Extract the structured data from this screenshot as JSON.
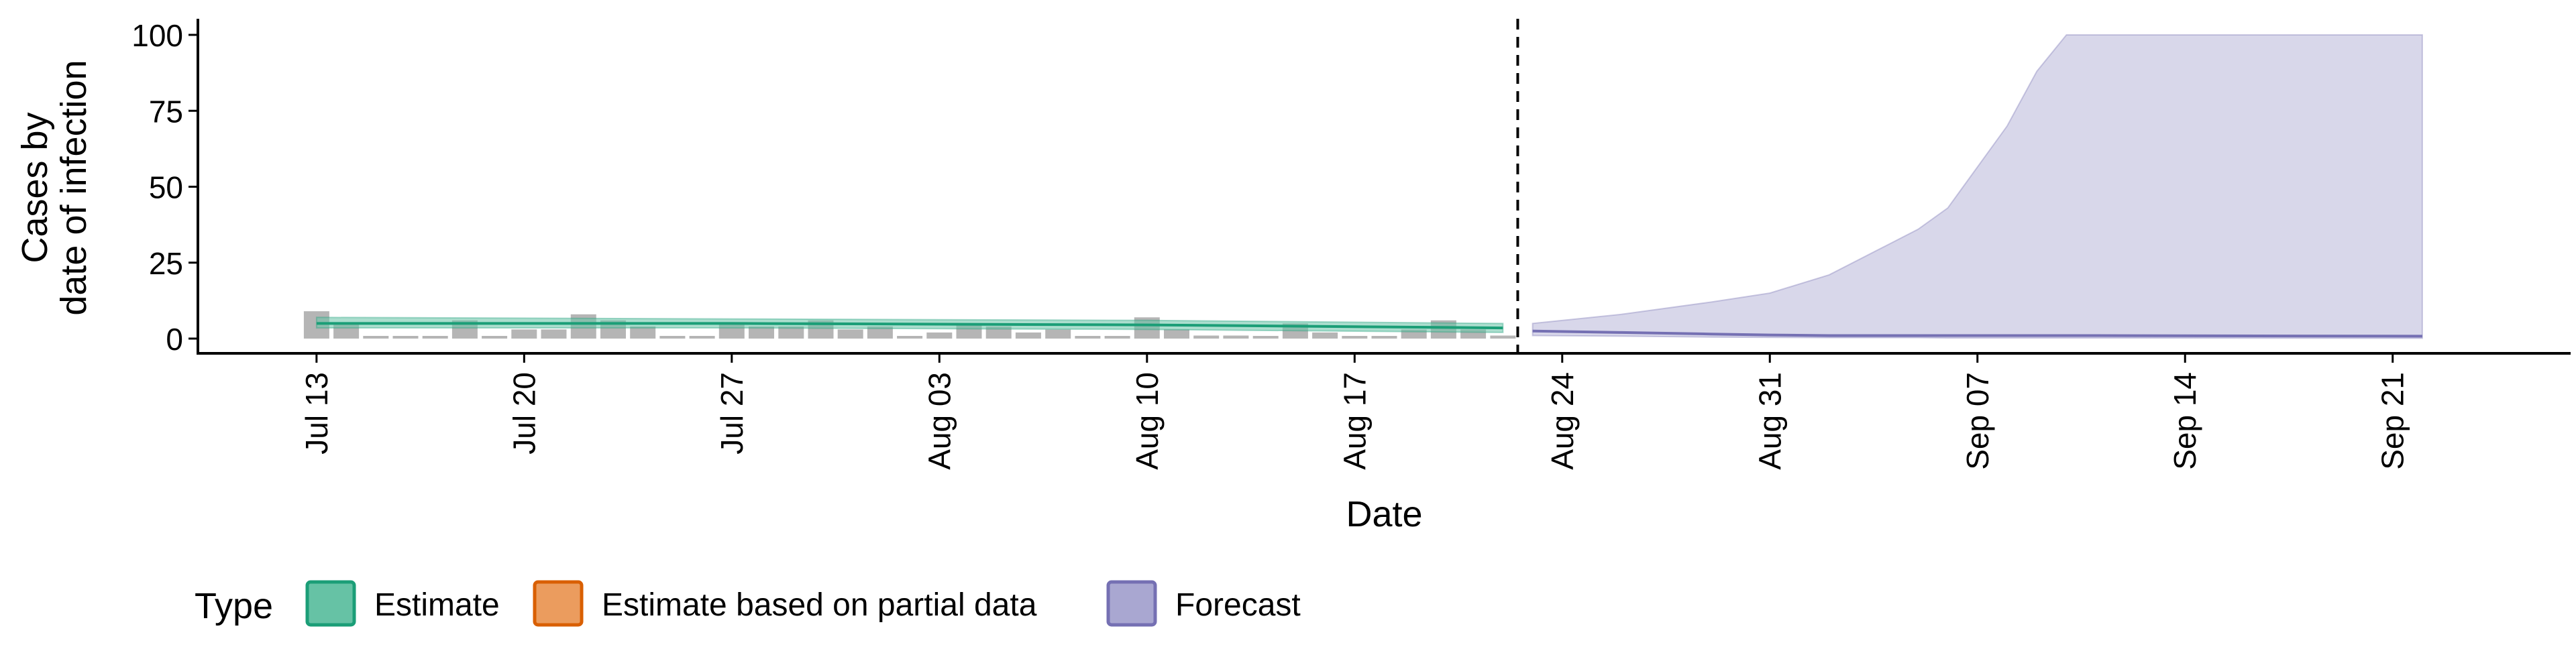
{
  "chart_data": {
    "type": "area",
    "title": "",
    "xlabel": "Date",
    "ylabel_lines": [
      "Cases by",
      "date of infection"
    ],
    "ylim": [
      0,
      100
    ],
    "y_ticks": [
      0,
      25,
      50,
      75,
      100
    ],
    "y_tick_labels": [
      "0",
      "25",
      "50",
      "75",
      "100"
    ],
    "x_range": [
      "2020-07-09",
      "2020-09-27"
    ],
    "x_ticks": [
      "2020-07-13",
      "2020-07-20",
      "2020-07-27",
      "2020-08-03",
      "2020-08-10",
      "2020-08-17",
      "2020-08-24",
      "2020-08-31",
      "2020-09-07",
      "2020-09-14",
      "2020-09-21"
    ],
    "x_tick_labels": [
      "Jul 13",
      "Jul 20",
      "Jul 27",
      "Aug 03",
      "Aug 10",
      "Aug 17",
      "Aug 24",
      "Aug 31",
      "Sep 07",
      "Sep 14",
      "Sep 21"
    ],
    "forecast_start": "2020-08-23",
    "grid": false,
    "legend": {
      "position": "bottom-left",
      "title": "Type",
      "items": [
        {
          "label": "Estimate",
          "fill": "#66c2a5",
          "stroke": "#1b9e77"
        },
        {
          "label": "Estimate based on partial data",
          "fill": "#eb9c5e",
          "stroke": "#d95f02"
        },
        {
          "label": "Forecast",
          "fill": "#a9a7d1",
          "stroke": "#7570b3"
        }
      ]
    },
    "reported_cases": {
      "dates": [
        "2020-07-13",
        "2020-07-14",
        "2020-07-15",
        "2020-07-16",
        "2020-07-17",
        "2020-07-18",
        "2020-07-19",
        "2020-07-20",
        "2020-07-21",
        "2020-07-22",
        "2020-07-23",
        "2020-07-24",
        "2020-07-25",
        "2020-07-26",
        "2020-07-27",
        "2020-07-28",
        "2020-07-29",
        "2020-07-30",
        "2020-07-31",
        "2020-08-01",
        "2020-08-02",
        "2020-08-03",
        "2020-08-04",
        "2020-08-05",
        "2020-08-06",
        "2020-08-07",
        "2020-08-08",
        "2020-08-09",
        "2020-08-10",
        "2020-08-11",
        "2020-08-12",
        "2020-08-13",
        "2020-08-14",
        "2020-08-15",
        "2020-08-16",
        "2020-08-17",
        "2020-08-18",
        "2020-08-19",
        "2020-08-20",
        "2020-08-21",
        "2020-08-22"
      ],
      "values": [
        9,
        5,
        0,
        0,
        0,
        6,
        0,
        3,
        3,
        8,
        6,
        4,
        0,
        0,
        5,
        4,
        4,
        6,
        3,
        4,
        0,
        2,
        5,
        4,
        2,
        3,
        0,
        0,
        7,
        3,
        1,
        1,
        0,
        5,
        2,
        0,
        0,
        3,
        6,
        3,
        1
      ]
    },
    "series": [
      {
        "name": "Estimate",
        "dates": [
          "2020-07-13",
          "2020-07-27",
          "2020-08-10",
          "2020-08-22"
        ],
        "median": [
          5,
          5,
          4.5,
          3.5
        ],
        "lower": [
          3.5,
          3.5,
          3,
          2
        ],
        "upper": [
          7,
          6.5,
          6,
          5
        ]
      },
      {
        "name": "Forecast",
        "dates": [
          "2020-08-23",
          "2020-08-26",
          "2020-08-29",
          "2020-08-31",
          "2020-09-02",
          "2020-09-04",
          "2020-09-05",
          "2020-09-06",
          "2020-09-08",
          "2020-09-09",
          "2020-09-10",
          "2020-09-11",
          "2020-09-22"
        ],
        "median": [
          2.5,
          2,
          1.5,
          1.2,
          1,
          1,
          1,
          1,
          1,
          1,
          1,
          1,
          0.8
        ],
        "lower": [
          1,
          0.8,
          0.5,
          0.4,
          0.3,
          0.3,
          0.3,
          0.2,
          0.2,
          0.2,
          0.2,
          0.2,
          0.1
        ],
        "upper": [
          5,
          8,
          12,
          15,
          21,
          31,
          36,
          43,
          70,
          88,
          100,
          100,
          100
        ]
      }
    ]
  }
}
